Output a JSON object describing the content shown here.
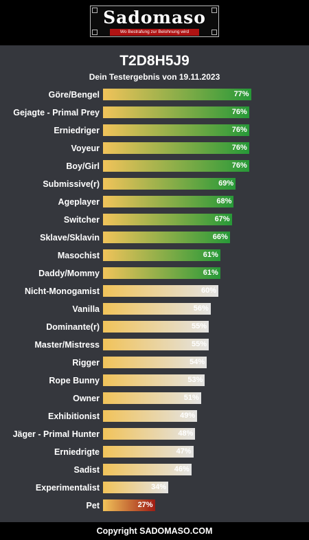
{
  "header": {
    "logo_text": "Sadomaso",
    "logo_tagline": "Wo Bestrafung zur Belohnung wird"
  },
  "footer": {
    "copyright": "Copyright SADOMASO.COM"
  },
  "colors": {
    "bar_start": "#f1c35a",
    "green_end": "#279938",
    "light_end": "#e3e3e3",
    "red_end": "#9f1c14"
  },
  "chart_data": {
    "type": "bar",
    "title": "T2D8H5J9",
    "subtitle": "Dein Testergebnis von 19.11.2023",
    "orientation": "horizontal",
    "value_suffix": "%",
    "xlim": [
      0,
      100
    ],
    "categories": [
      "Göre/Bengel",
      "Gejagte - Primal Prey",
      "Erniedriger",
      "Voyeur",
      "Boy/Girl",
      "Submissive(r)",
      "Ageplayer",
      "Switcher",
      "Sklave/Sklavin",
      "Masochist",
      "Daddy/Mommy",
      "Nicht-Monogamist",
      "Vanilla",
      "Dominante(r)",
      "Master/Mistress",
      "Rigger",
      "Rope Bunny",
      "Owner",
      "Exhibitionist",
      "Jäger - Primal Hunter",
      "Erniedrigte",
      "Sadist",
      "Experimentalist",
      "Pet"
    ],
    "values": [
      77,
      76,
      76,
      76,
      76,
      69,
      68,
      67,
      66,
      61,
      61,
      60,
      56,
      55,
      55,
      54,
      53,
      51,
      49,
      48,
      47,
      46,
      34,
      27
    ],
    "value_labels": [
      "77%",
      "76%",
      "76%",
      "76%",
      "76%",
      "69%",
      "68%",
      "67%",
      "66%",
      "61%",
      "61%",
      "60%",
      "56%",
      "55%",
      "55%",
      "54%",
      "53%",
      "51%",
      "49%",
      "48%",
      "47%",
      "46%",
      "34%",
      "27%"
    ]
  }
}
